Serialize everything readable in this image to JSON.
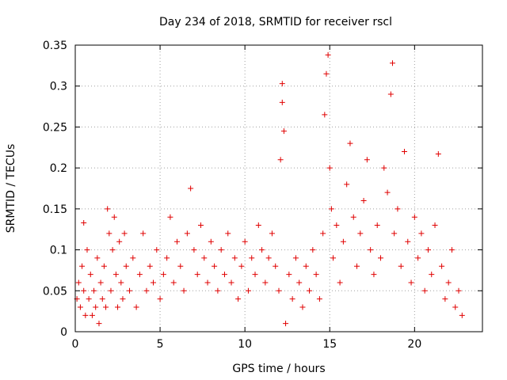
{
  "chart_data": {
    "type": "scatter",
    "title": "Day 234 of 2018, SRMTID for receiver rscl",
    "xlabel": "GPS time / hours",
    "ylabel": "SRMTID / TECUs",
    "xlim": [
      0,
      24
    ],
    "ylim": [
      0,
      0.35
    ],
    "xticks": [
      0,
      5,
      10,
      15,
      20
    ],
    "xtick_labels": [
      "0",
      "5",
      "10",
      "15",
      "20"
    ],
    "yticks": [
      0,
      0.05,
      0.1,
      0.15,
      0.2,
      0.25,
      0.3,
      0.35
    ],
    "ytick_labels": [
      "0",
      "0.05",
      "0.1",
      "0.15",
      "0.2",
      "0.25",
      "0.3",
      "0.35"
    ],
    "grid": true,
    "marker": "plus",
    "color": "#e00000",
    "series": [
      {
        "name": "SRMTID",
        "points": [
          [
            0.1,
            0.04
          ],
          [
            0.2,
            0.06
          ],
          [
            0.3,
            0.03
          ],
          [
            0.4,
            0.08
          ],
          [
            0.5,
            0.05
          ],
          [
            0.6,
            0.02
          ],
          [
            0.7,
            0.1
          ],
          [
            0.5,
            0.133
          ],
          [
            0.8,
            0.04
          ],
          [
            0.9,
            0.07
          ],
          [
            1.0,
            0.02
          ],
          [
            1.1,
            0.05
          ],
          [
            1.2,
            0.03
          ],
          [
            1.3,
            0.09
          ],
          [
            1.4,
            0.01
          ],
          [
            1.5,
            0.06
          ],
          [
            1.6,
            0.04
          ],
          [
            1.7,
            0.08
          ],
          [
            1.8,
            0.03
          ],
          [
            1.9,
            0.15
          ],
          [
            2.0,
            0.12
          ],
          [
            2.1,
            0.05
          ],
          [
            2.2,
            0.1
          ],
          [
            2.3,
            0.14
          ],
          [
            2.4,
            0.07
          ],
          [
            2.5,
            0.03
          ],
          [
            2.6,
            0.11
          ],
          [
            2.7,
            0.06
          ],
          [
            2.8,
            0.04
          ],
          [
            2.9,
            0.12
          ],
          [
            3.0,
            0.08
          ],
          [
            3.2,
            0.05
          ],
          [
            3.4,
            0.09
          ],
          [
            3.6,
            0.03
          ],
          [
            3.8,
            0.07
          ],
          [
            4.0,
            0.12
          ],
          [
            4.2,
            0.05
          ],
          [
            4.4,
            0.08
          ],
          [
            4.6,
            0.06
          ],
          [
            4.8,
            0.1
          ],
          [
            5.0,
            0.04
          ],
          [
            5.2,
            0.07
          ],
          [
            5.4,
            0.09
          ],
          [
            5.6,
            0.14
          ],
          [
            5.8,
            0.06
          ],
          [
            6.0,
            0.11
          ],
          [
            6.2,
            0.08
          ],
          [
            6.4,
            0.05
          ],
          [
            6.6,
            0.12
          ],
          [
            6.8,
            0.175
          ],
          [
            7.0,
            0.1
          ],
          [
            7.2,
            0.07
          ],
          [
            7.4,
            0.13
          ],
          [
            7.6,
            0.09
          ],
          [
            7.8,
            0.06
          ],
          [
            8.0,
            0.11
          ],
          [
            8.2,
            0.08
          ],
          [
            8.4,
            0.05
          ],
          [
            8.6,
            0.1
          ],
          [
            8.8,
            0.07
          ],
          [
            9.0,
            0.12
          ],
          [
            9.2,
            0.06
          ],
          [
            9.4,
            0.09
          ],
          [
            9.6,
            0.04
          ],
          [
            9.8,
            0.08
          ],
          [
            10.0,
            0.11
          ],
          [
            10.2,
            0.05
          ],
          [
            10.4,
            0.09
          ],
          [
            10.6,
            0.07
          ],
          [
            10.8,
            0.13
          ],
          [
            11.0,
            0.1
          ],
          [
            11.2,
            0.06
          ],
          [
            11.4,
            0.09
          ],
          [
            11.6,
            0.12
          ],
          [
            11.8,
            0.08
          ],
          [
            12.0,
            0.05
          ],
          [
            12.1,
            0.21
          ],
          [
            12.2,
            0.28
          ],
          [
            12.2,
            0.303
          ],
          [
            12.3,
            0.245
          ],
          [
            12.4,
            0.01
          ],
          [
            12.6,
            0.07
          ],
          [
            12.8,
            0.04
          ],
          [
            13.0,
            0.09
          ],
          [
            13.2,
            0.06
          ],
          [
            13.4,
            0.03
          ],
          [
            13.6,
            0.08
          ],
          [
            13.8,
            0.05
          ],
          [
            14.0,
            0.1
          ],
          [
            14.2,
            0.07
          ],
          [
            14.4,
            0.04
          ],
          [
            14.6,
            0.12
          ],
          [
            14.7,
            0.265
          ],
          [
            14.8,
            0.315
          ],
          [
            14.9,
            0.338
          ],
          [
            15.0,
            0.2
          ],
          [
            15.1,
            0.15
          ],
          [
            15.2,
            0.09
          ],
          [
            15.4,
            0.13
          ],
          [
            15.6,
            0.06
          ],
          [
            15.8,
            0.11
          ],
          [
            16.0,
            0.18
          ],
          [
            16.2,
            0.23
          ],
          [
            16.4,
            0.14
          ],
          [
            16.6,
            0.08
          ],
          [
            16.8,
            0.12
          ],
          [
            17.0,
            0.16
          ],
          [
            17.2,
            0.21
          ],
          [
            17.4,
            0.1
          ],
          [
            17.6,
            0.07
          ],
          [
            17.8,
            0.13
          ],
          [
            18.0,
            0.09
          ],
          [
            18.2,
            0.2
          ],
          [
            18.4,
            0.17
          ],
          [
            18.6,
            0.29
          ],
          [
            18.7,
            0.328
          ],
          [
            18.8,
            0.12
          ],
          [
            19.0,
            0.15
          ],
          [
            19.2,
            0.08
          ],
          [
            19.4,
            0.22
          ],
          [
            19.6,
            0.11
          ],
          [
            19.8,
            0.06
          ],
          [
            20.0,
            0.14
          ],
          [
            20.2,
            0.09
          ],
          [
            20.4,
            0.12
          ],
          [
            20.6,
            0.05
          ],
          [
            20.8,
            0.1
          ],
          [
            21.0,
            0.07
          ],
          [
            21.2,
            0.13
          ],
          [
            21.4,
            0.217
          ],
          [
            21.6,
            0.08
          ],
          [
            21.8,
            0.04
          ],
          [
            22.0,
            0.06
          ],
          [
            22.2,
            0.1
          ],
          [
            22.4,
            0.03
          ],
          [
            22.6,
            0.05
          ],
          [
            22.8,
            0.02
          ]
        ]
      }
    ]
  }
}
